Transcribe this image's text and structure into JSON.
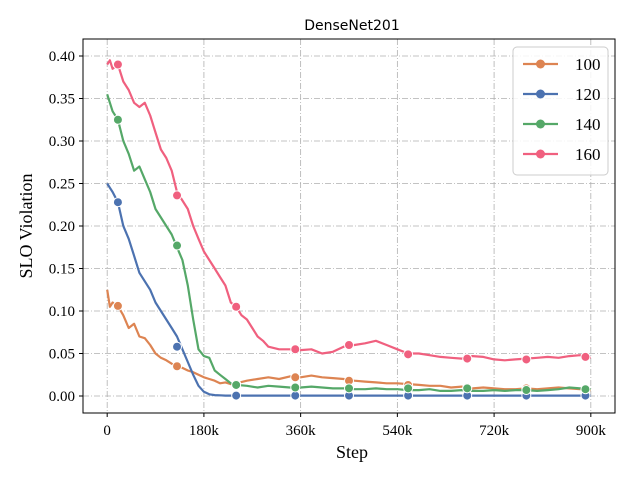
{
  "chart_data": {
    "type": "line",
    "title": "DenseNet201",
    "xlabel": "Step",
    "ylabel": "SLO Violation",
    "xlim": [
      -45000,
      945000
    ],
    "ylim": [
      -0.02,
      0.42
    ],
    "grid": true,
    "legend_position": "top-right",
    "x_ticks": [
      0,
      180000,
      360000,
      540000,
      720000,
      900000
    ],
    "x_tick_labels": [
      "0",
      "180k",
      "360k",
      "540k",
      "720k",
      "900k"
    ],
    "y_ticks": [
      0.0,
      0.05,
      0.1,
      0.15,
      0.2,
      0.25,
      0.3,
      0.35,
      0.4
    ],
    "y_tick_labels": [
      "0.00",
      "0.05",
      "0.10",
      "0.15",
      "0.20",
      "0.25",
      "0.30",
      "0.35",
      "0.40"
    ],
    "series": [
      {
        "name": "100",
        "color": "#dd8452",
        "x": [
          0,
          5000,
          10000,
          20000,
          30000,
          40000,
          50000,
          60000,
          70000,
          80000,
          90000,
          100000,
          110000,
          120000,
          130000,
          140000,
          150000,
          160000,
          170000,
          180000,
          190000,
          200000,
          210000,
          220000,
          230000,
          240000,
          260000,
          280000,
          300000,
          320000,
          340000,
          360000,
          380000,
          400000,
          420000,
          440000,
          460000,
          480000,
          500000,
          520000,
          540000,
          560000,
          580000,
          600000,
          620000,
          640000,
          660000,
          680000,
          700000,
          720000,
          740000,
          760000,
          780000,
          800000,
          820000,
          840000,
          860000,
          880000,
          900000
        ],
        "y": [
          0.125,
          0.105,
          0.11,
          0.106,
          0.095,
          0.08,
          0.085,
          0.07,
          0.068,
          0.06,
          0.05,
          0.045,
          0.042,
          0.038,
          0.035,
          0.033,
          0.03,
          0.028,
          0.025,
          0.022,
          0.02,
          0.018,
          0.015,
          0.016,
          0.014,
          0.015,
          0.018,
          0.02,
          0.022,
          0.02,
          0.023,
          0.022,
          0.024,
          0.022,
          0.021,
          0.02,
          0.018,
          0.017,
          0.016,
          0.015,
          0.015,
          0.014,
          0.013,
          0.012,
          0.012,
          0.01,
          0.011,
          0.009,
          0.01,
          0.009,
          0.008,
          0.008,
          0.009,
          0.008,
          0.009,
          0.01,
          0.009,
          0.008,
          0.007
        ],
        "markers_x": [
          20000,
          130000,
          240000,
          350000,
          450000,
          560000,
          670000,
          780000,
          890000
        ],
        "markers_y": [
          0.106,
          0.035,
          0.014,
          0.022,
          0.018,
          0.013,
          0.01,
          0.009,
          0.008
        ]
      },
      {
        "name": "120",
        "color": "#4c72b0",
        "x": [
          0,
          5000,
          10000,
          20000,
          30000,
          40000,
          50000,
          60000,
          70000,
          80000,
          90000,
          100000,
          110000,
          120000,
          130000,
          140000,
          150000,
          160000,
          170000,
          180000,
          190000,
          200000,
          210000,
          220000,
          240000,
          260000,
          300000,
          350000,
          400000,
          450000,
          500000,
          550000,
          600000,
          650000,
          700000,
          750000,
          800000,
          850000,
          900000
        ],
        "y": [
          0.25,
          0.245,
          0.24,
          0.228,
          0.2,
          0.185,
          0.165,
          0.145,
          0.135,
          0.125,
          0.11,
          0.1,
          0.09,
          0.08,
          0.07,
          0.055,
          0.04,
          0.025,
          0.012,
          0.005,
          0.002,
          0.001,
          0.0008,
          0.0005,
          0.0005,
          0.0005,
          0.0005,
          0.0005,
          0.0005,
          0.0005,
          0.0005,
          0.0005,
          0.0005,
          0.0005,
          0.0005,
          0.0005,
          0.0005,
          0.0005,
          0.0005
        ],
        "markers_x": [
          20000,
          130000,
          240000,
          350000,
          450000,
          560000,
          670000,
          780000,
          890000
        ],
        "markers_y": [
          0.228,
          0.058,
          0.0005,
          0.0005,
          0.0005,
          0.0005,
          0.0005,
          0.0005,
          0.0005
        ]
      },
      {
        "name": "140",
        "color": "#55a868",
        "x": [
          0,
          5000,
          10000,
          20000,
          30000,
          40000,
          50000,
          60000,
          70000,
          80000,
          90000,
          100000,
          110000,
          120000,
          130000,
          140000,
          150000,
          160000,
          170000,
          180000,
          190000,
          200000,
          210000,
          220000,
          230000,
          240000,
          260000,
          280000,
          300000,
          320000,
          340000,
          360000,
          380000,
          400000,
          420000,
          440000,
          460000,
          480000,
          500000,
          520000,
          540000,
          560000,
          580000,
          600000,
          620000,
          640000,
          660000,
          680000,
          700000,
          720000,
          740000,
          760000,
          780000,
          800000,
          820000,
          840000,
          860000,
          880000,
          900000
        ],
        "y": [
          0.355,
          0.345,
          0.335,
          0.325,
          0.3,
          0.285,
          0.265,
          0.27,
          0.255,
          0.24,
          0.22,
          0.21,
          0.2,
          0.19,
          0.175,
          0.16,
          0.13,
          0.09,
          0.055,
          0.047,
          0.045,
          0.03,
          0.025,
          0.02,
          0.015,
          0.013,
          0.012,
          0.01,
          0.012,
          0.011,
          0.01,
          0.01,
          0.011,
          0.01,
          0.009,
          0.009,
          0.008,
          0.008,
          0.009,
          0.008,
          0.008,
          0.007,
          0.007,
          0.008,
          0.006,
          0.006,
          0.007,
          0.006,
          0.006,
          0.007,
          0.006,
          0.007,
          0.007,
          0.006,
          0.007,
          0.008,
          0.01,
          0.009,
          0.008
        ],
        "markers_x": [
          20000,
          130000,
          240000,
          350000,
          450000,
          560000,
          670000,
          780000,
          890000
        ],
        "markers_y": [
          0.325,
          0.177,
          0.013,
          0.01,
          0.009,
          0.009,
          0.009,
          0.007,
          0.008
        ]
      },
      {
        "name": "160",
        "color": "#f0607f",
        "x": [
          0,
          5000,
          10000,
          20000,
          30000,
          40000,
          50000,
          60000,
          70000,
          80000,
          90000,
          100000,
          110000,
          120000,
          130000,
          140000,
          150000,
          160000,
          170000,
          180000,
          190000,
          200000,
          210000,
          220000,
          230000,
          240000,
          250000,
          260000,
          270000,
          280000,
          290000,
          300000,
          320000,
          340000,
          360000,
          380000,
          400000,
          420000,
          440000,
          460000,
          480000,
          500000,
          520000,
          540000,
          560000,
          580000,
          600000,
          620000,
          640000,
          660000,
          680000,
          700000,
          720000,
          740000,
          760000,
          780000,
          800000,
          820000,
          840000,
          860000,
          880000,
          900000
        ],
        "y": [
          0.39,
          0.395,
          0.385,
          0.39,
          0.37,
          0.36,
          0.345,
          0.34,
          0.345,
          0.33,
          0.31,
          0.29,
          0.28,
          0.265,
          0.24,
          0.23,
          0.22,
          0.2,
          0.185,
          0.17,
          0.16,
          0.15,
          0.14,
          0.13,
          0.11,
          0.105,
          0.095,
          0.09,
          0.08,
          0.07,
          0.065,
          0.058,
          0.055,
          0.055,
          0.054,
          0.055,
          0.05,
          0.052,
          0.058,
          0.06,
          0.062,
          0.065,
          0.06,
          0.055,
          0.05,
          0.05,
          0.048,
          0.046,
          0.045,
          0.044,
          0.047,
          0.046,
          0.043,
          0.042,
          0.043,
          0.044,
          0.045,
          0.046,
          0.045,
          0.047,
          0.048,
          0.045
        ],
        "markers_x": [
          20000,
          130000,
          240000,
          350000,
          450000,
          560000,
          670000,
          780000,
          890000
        ],
        "markers_y": [
          0.39,
          0.236,
          0.105,
          0.055,
          0.06,
          0.049,
          0.044,
          0.043,
          0.046
        ]
      }
    ]
  }
}
